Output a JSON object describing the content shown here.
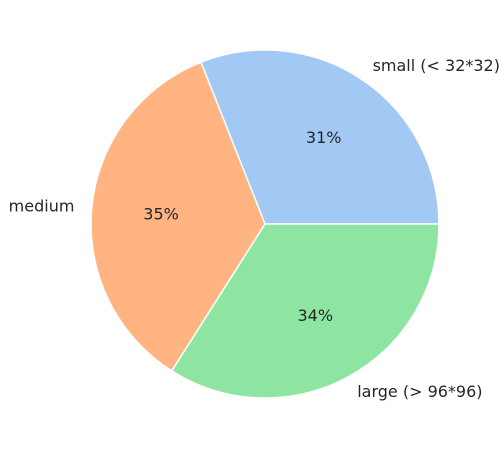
{
  "chart_data": {
    "type": "pie",
    "title": "",
    "slices": [
      {
        "label": "small (< 32*32)",
        "value": 31,
        "pct_label": "31%",
        "color": "#a1c9f4"
      },
      {
        "label": "medium",
        "value": 35,
        "pct_label": "35%",
        "color": "#ffb482"
      },
      {
        "label": "large (> 96*96)",
        "value": 34,
        "pct_label": "34%",
        "color": "#8de5a1"
      }
    ],
    "start_angle_deg": 0,
    "direction": "counterclockwise",
    "slice_edge_color": "#ffffff",
    "legend": "none"
  }
}
